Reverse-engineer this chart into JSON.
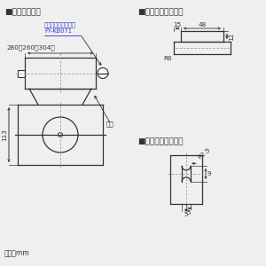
{
  "bg_color": "#efefef",
  "line_color": "#333333",
  "dashed_color": "#999999",
  "title1": "■吊り金具位置",
  "title2": "■吊り金具穴詳細図",
  "title3": "■本体取付穴詳細図",
  "label_hook_line1": "吊り金具（別売品）",
  "label_hook_line2": "FY-KB071",
  "label_280": "280（260～304）",
  "label_honsha": "本体",
  "label_113": "113",
  "label_unit": "単位：mm",
  "label_48": "48",
  "label_15": "15",
  "label_12": "12",
  "label_R6": "R6",
  "label_R25": "R2.5",
  "label_9": "9",
  "label_5": "5",
  "arrow_color": "#333333"
}
